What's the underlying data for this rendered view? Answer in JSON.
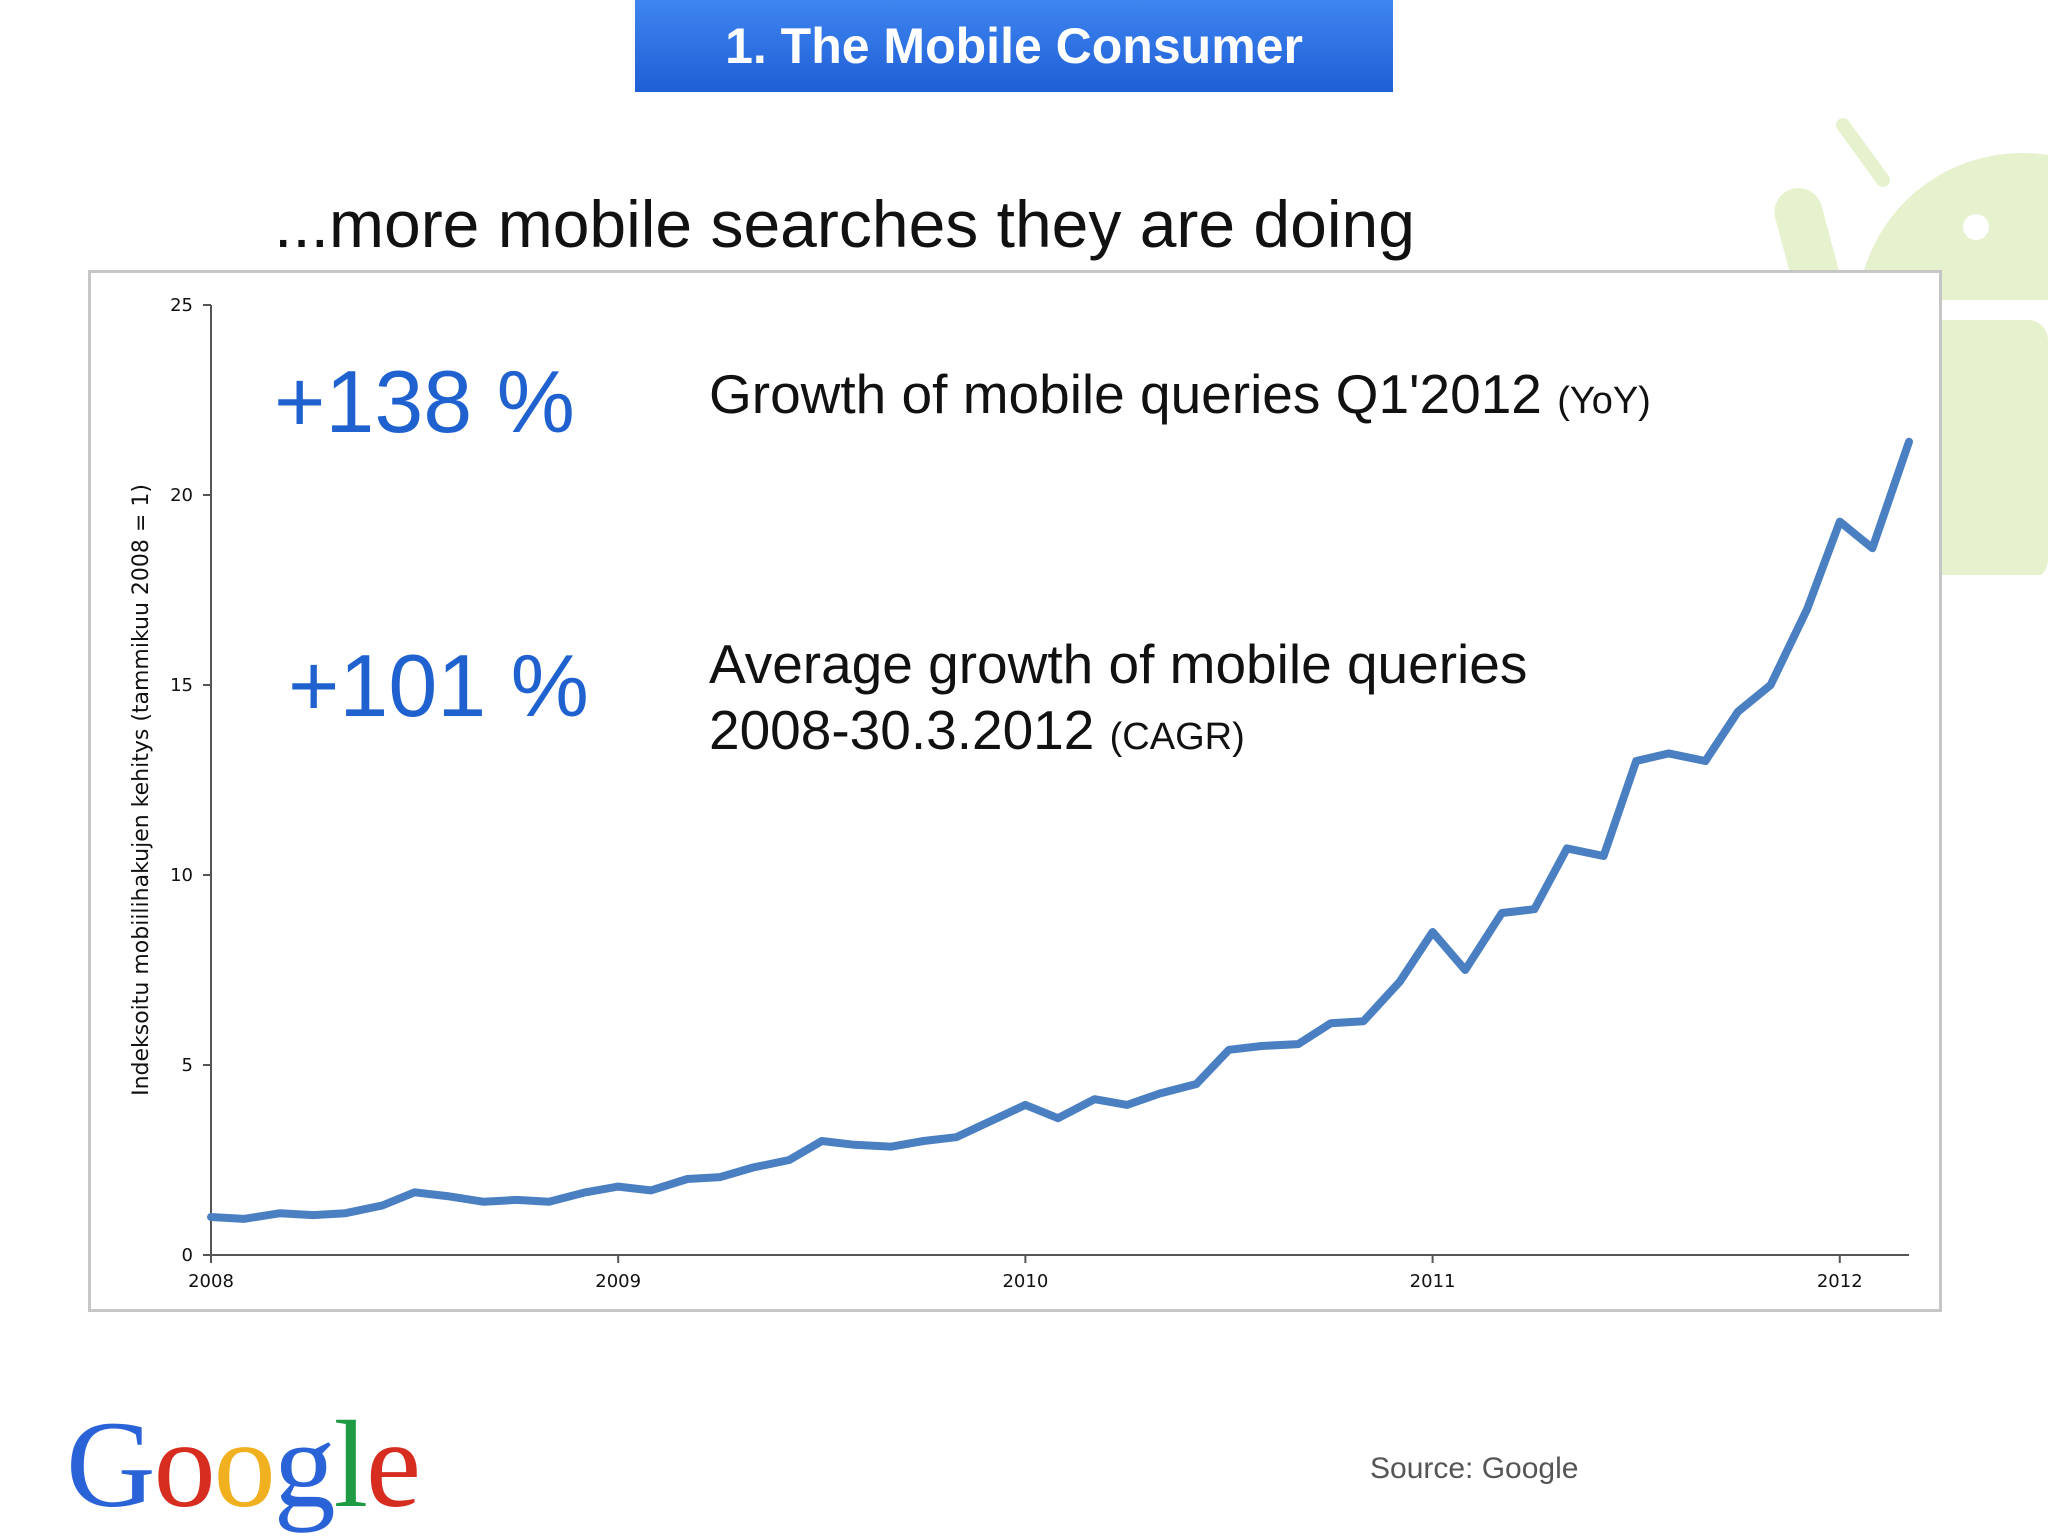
{
  "banner": {
    "title": "1. The Mobile Consumer"
  },
  "heading": "...more mobile searches they are doing",
  "stats": [
    {
      "value": "+138 %",
      "description": "Growth of mobile queries Q1'2012",
      "note": "(YoY)"
    },
    {
      "value": "+101 %",
      "description": "Average growth of mobile queries",
      "description_line2": "2008-30.3.2012",
      "note": "(CAGR)"
    }
  ],
  "footer": {
    "logo": "Google",
    "source": "Source: Google"
  },
  "colors": {
    "banner": "#2b6fe3",
    "stat_value": "#1f62cf",
    "line": "#4a7fc1"
  },
  "chart_data": {
    "type": "line",
    "ylabel": "Indeksoitu mobiilihakujen kehitys (tammikuu 2008 = 1)",
    "xlabel": "",
    "xlim": [
      2008,
      2012.17
    ],
    "ylim": [
      0,
      25
    ],
    "x_ticks": [
      2008,
      2009,
      2010,
      2011,
      2012
    ],
    "y_ticks": [
      0,
      5,
      10,
      15,
      20,
      25
    ],
    "grid": false,
    "series": [
      {
        "x": [
          2008.0,
          2008.08,
          2008.17,
          2008.25,
          2008.33,
          2008.42,
          2008.5,
          2008.58,
          2008.67,
          2008.75,
          2008.83,
          2008.92,
          2009.0,
          2009.08,
          2009.17,
          2009.25,
          2009.33,
          2009.42,
          2009.5,
          2009.58,
          2009.67,
          2009.75,
          2009.83,
          2009.92,
          2010.0,
          2010.08,
          2010.17,
          2010.25,
          2010.33,
          2010.42,
          2010.5,
          2010.58,
          2010.67,
          2010.75,
          2010.83,
          2010.92,
          2011.0,
          2011.08,
          2011.17,
          2011.25,
          2011.33,
          2011.42,
          2011.5,
          2011.58,
          2011.67,
          2011.75,
          2011.83,
          2011.92,
          2012.0,
          2012.08,
          2012.17
        ],
        "y": [
          1.0,
          0.95,
          1.1,
          1.05,
          1.1,
          1.3,
          1.65,
          1.55,
          1.4,
          1.45,
          1.4,
          1.65,
          1.8,
          1.7,
          2.0,
          2.05,
          2.3,
          2.5,
          3.0,
          2.9,
          2.85,
          3.0,
          3.1,
          3.55,
          3.95,
          3.6,
          4.1,
          3.95,
          4.25,
          4.5,
          5.4,
          5.5,
          5.55,
          6.1,
          6.15,
          7.2,
          8.5,
          7.5,
          9.0,
          9.1,
          10.7,
          10.5,
          13.0,
          13.2,
          13.0,
          14.3,
          15.0,
          17.0,
          19.3,
          18.6,
          21.4
        ]
      }
    ]
  }
}
